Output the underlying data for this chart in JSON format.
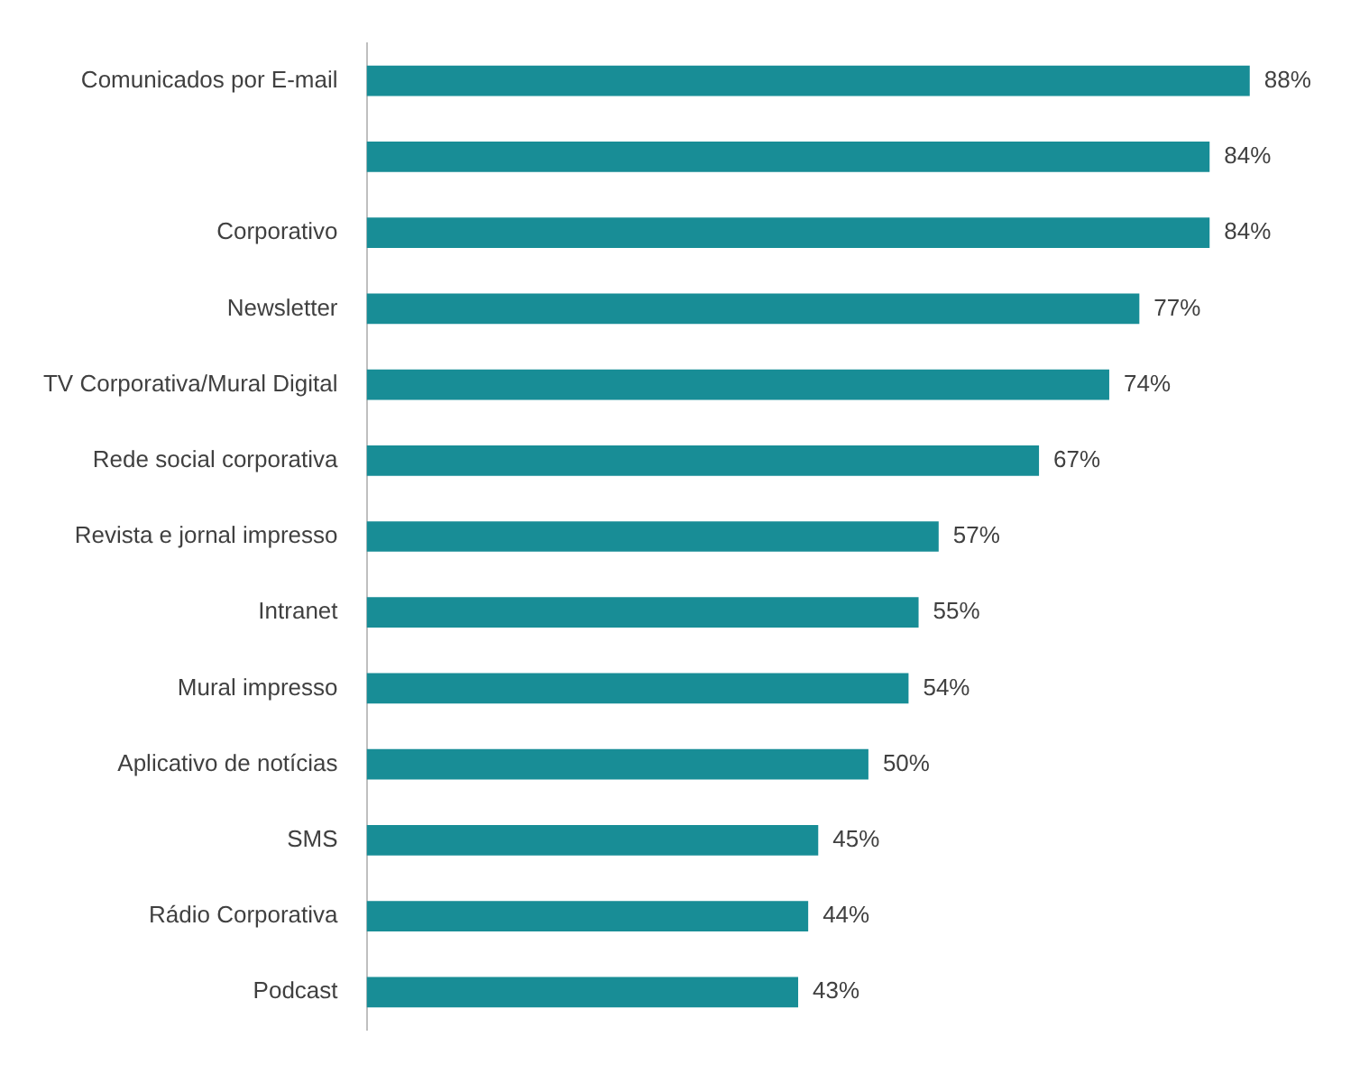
{
  "chart_data": {
    "type": "bar",
    "orientation": "horizontal",
    "categories": [
      "Comunicados por E-mail",
      null,
      "Corporativo",
      "Newsletter",
      "TV Corporativa/Mural Digital",
      "Rede social corporativa",
      "Revista e jornal impresso",
      "Intranet",
      "Mural impresso",
      "Aplicativo de notícias",
      "SMS",
      "Rádio Corporativa",
      "Podcast"
    ],
    "values": [
      88,
      84,
      84,
      77,
      74,
      67,
      57,
      55,
      54,
      50,
      45,
      44,
      43
    ],
    "value_labels": [
      "88%",
      "84%",
      "84%",
      "77%",
      "74%",
      "67%",
      "57%",
      "55%",
      "54%",
      "50%",
      "45%",
      "44%",
      "43%"
    ],
    "color": "#188d96"
  }
}
